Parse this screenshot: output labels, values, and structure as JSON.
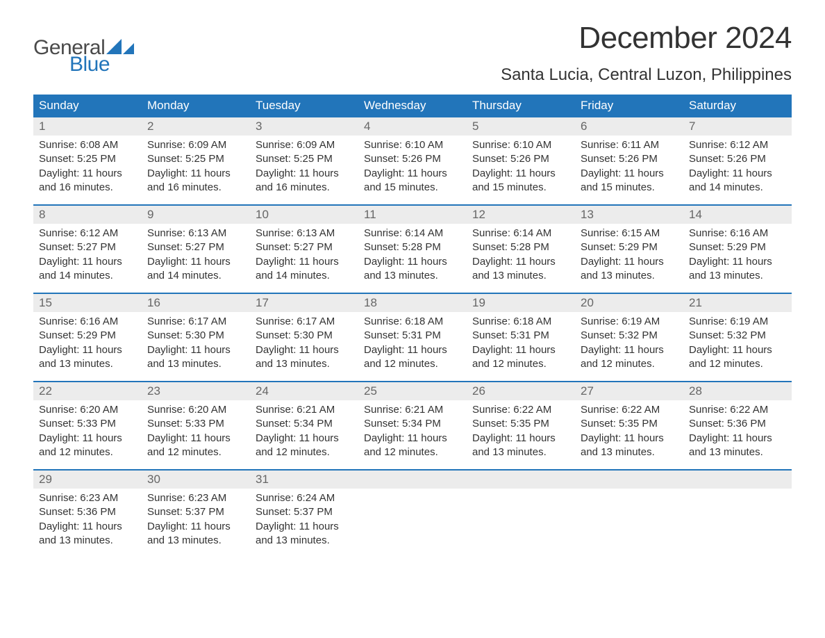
{
  "logo": {
    "text_general": "General",
    "text_blue": "Blue",
    "icon_color": "#2275ba"
  },
  "title": "December 2024",
  "location": "Santa Lucia, Central Luzon, Philippines",
  "colors": {
    "header_bg": "#2275ba",
    "header_text": "#ffffff",
    "daynum_bg": "#ececec",
    "daynum_text": "#666666",
    "body_text": "#333333",
    "week_border": "#2275ba",
    "page_bg": "#ffffff"
  },
  "typography": {
    "title_fontsize": 44,
    "location_fontsize": 24,
    "dayheader_fontsize": 17,
    "daynum_fontsize": 17,
    "body_fontsize": 15
  },
  "day_headers": [
    "Sunday",
    "Monday",
    "Tuesday",
    "Wednesday",
    "Thursday",
    "Friday",
    "Saturday"
  ],
  "weeks": [
    [
      {
        "n": "1",
        "sunrise": "Sunrise: 6:08 AM",
        "sunset": "Sunset: 5:25 PM",
        "dl1": "Daylight: 11 hours",
        "dl2": "and 16 minutes."
      },
      {
        "n": "2",
        "sunrise": "Sunrise: 6:09 AM",
        "sunset": "Sunset: 5:25 PM",
        "dl1": "Daylight: 11 hours",
        "dl2": "and 16 minutes."
      },
      {
        "n": "3",
        "sunrise": "Sunrise: 6:09 AM",
        "sunset": "Sunset: 5:25 PM",
        "dl1": "Daylight: 11 hours",
        "dl2": "and 16 minutes."
      },
      {
        "n": "4",
        "sunrise": "Sunrise: 6:10 AM",
        "sunset": "Sunset: 5:26 PM",
        "dl1": "Daylight: 11 hours",
        "dl2": "and 15 minutes."
      },
      {
        "n": "5",
        "sunrise": "Sunrise: 6:10 AM",
        "sunset": "Sunset: 5:26 PM",
        "dl1": "Daylight: 11 hours",
        "dl2": "and 15 minutes."
      },
      {
        "n": "6",
        "sunrise": "Sunrise: 6:11 AM",
        "sunset": "Sunset: 5:26 PM",
        "dl1": "Daylight: 11 hours",
        "dl2": "and 15 minutes."
      },
      {
        "n": "7",
        "sunrise": "Sunrise: 6:12 AM",
        "sunset": "Sunset: 5:26 PM",
        "dl1": "Daylight: 11 hours",
        "dl2": "and 14 minutes."
      }
    ],
    [
      {
        "n": "8",
        "sunrise": "Sunrise: 6:12 AM",
        "sunset": "Sunset: 5:27 PM",
        "dl1": "Daylight: 11 hours",
        "dl2": "and 14 minutes."
      },
      {
        "n": "9",
        "sunrise": "Sunrise: 6:13 AM",
        "sunset": "Sunset: 5:27 PM",
        "dl1": "Daylight: 11 hours",
        "dl2": "and 14 minutes."
      },
      {
        "n": "10",
        "sunrise": "Sunrise: 6:13 AM",
        "sunset": "Sunset: 5:27 PM",
        "dl1": "Daylight: 11 hours",
        "dl2": "and 14 minutes."
      },
      {
        "n": "11",
        "sunrise": "Sunrise: 6:14 AM",
        "sunset": "Sunset: 5:28 PM",
        "dl1": "Daylight: 11 hours",
        "dl2": "and 13 minutes."
      },
      {
        "n": "12",
        "sunrise": "Sunrise: 6:14 AM",
        "sunset": "Sunset: 5:28 PM",
        "dl1": "Daylight: 11 hours",
        "dl2": "and 13 minutes."
      },
      {
        "n": "13",
        "sunrise": "Sunrise: 6:15 AM",
        "sunset": "Sunset: 5:29 PM",
        "dl1": "Daylight: 11 hours",
        "dl2": "and 13 minutes."
      },
      {
        "n": "14",
        "sunrise": "Sunrise: 6:16 AM",
        "sunset": "Sunset: 5:29 PM",
        "dl1": "Daylight: 11 hours",
        "dl2": "and 13 minutes."
      }
    ],
    [
      {
        "n": "15",
        "sunrise": "Sunrise: 6:16 AM",
        "sunset": "Sunset: 5:29 PM",
        "dl1": "Daylight: 11 hours",
        "dl2": "and 13 minutes."
      },
      {
        "n": "16",
        "sunrise": "Sunrise: 6:17 AM",
        "sunset": "Sunset: 5:30 PM",
        "dl1": "Daylight: 11 hours",
        "dl2": "and 13 minutes."
      },
      {
        "n": "17",
        "sunrise": "Sunrise: 6:17 AM",
        "sunset": "Sunset: 5:30 PM",
        "dl1": "Daylight: 11 hours",
        "dl2": "and 13 minutes."
      },
      {
        "n": "18",
        "sunrise": "Sunrise: 6:18 AM",
        "sunset": "Sunset: 5:31 PM",
        "dl1": "Daylight: 11 hours",
        "dl2": "and 12 minutes."
      },
      {
        "n": "19",
        "sunrise": "Sunrise: 6:18 AM",
        "sunset": "Sunset: 5:31 PM",
        "dl1": "Daylight: 11 hours",
        "dl2": "and 12 minutes."
      },
      {
        "n": "20",
        "sunrise": "Sunrise: 6:19 AM",
        "sunset": "Sunset: 5:32 PM",
        "dl1": "Daylight: 11 hours",
        "dl2": "and 12 minutes."
      },
      {
        "n": "21",
        "sunrise": "Sunrise: 6:19 AM",
        "sunset": "Sunset: 5:32 PM",
        "dl1": "Daylight: 11 hours",
        "dl2": "and 12 minutes."
      }
    ],
    [
      {
        "n": "22",
        "sunrise": "Sunrise: 6:20 AM",
        "sunset": "Sunset: 5:33 PM",
        "dl1": "Daylight: 11 hours",
        "dl2": "and 12 minutes."
      },
      {
        "n": "23",
        "sunrise": "Sunrise: 6:20 AM",
        "sunset": "Sunset: 5:33 PM",
        "dl1": "Daylight: 11 hours",
        "dl2": "and 12 minutes."
      },
      {
        "n": "24",
        "sunrise": "Sunrise: 6:21 AM",
        "sunset": "Sunset: 5:34 PM",
        "dl1": "Daylight: 11 hours",
        "dl2": "and 12 minutes."
      },
      {
        "n": "25",
        "sunrise": "Sunrise: 6:21 AM",
        "sunset": "Sunset: 5:34 PM",
        "dl1": "Daylight: 11 hours",
        "dl2": "and 12 minutes."
      },
      {
        "n": "26",
        "sunrise": "Sunrise: 6:22 AM",
        "sunset": "Sunset: 5:35 PM",
        "dl1": "Daylight: 11 hours",
        "dl2": "and 13 minutes."
      },
      {
        "n": "27",
        "sunrise": "Sunrise: 6:22 AM",
        "sunset": "Sunset: 5:35 PM",
        "dl1": "Daylight: 11 hours",
        "dl2": "and 13 minutes."
      },
      {
        "n": "28",
        "sunrise": "Sunrise: 6:22 AM",
        "sunset": "Sunset: 5:36 PM",
        "dl1": "Daylight: 11 hours",
        "dl2": "and 13 minutes."
      }
    ],
    [
      {
        "n": "29",
        "sunrise": "Sunrise: 6:23 AM",
        "sunset": "Sunset: 5:36 PM",
        "dl1": "Daylight: 11 hours",
        "dl2": "and 13 minutes."
      },
      {
        "n": "30",
        "sunrise": "Sunrise: 6:23 AM",
        "sunset": "Sunset: 5:37 PM",
        "dl1": "Daylight: 11 hours",
        "dl2": "and 13 minutes."
      },
      {
        "n": "31",
        "sunrise": "Sunrise: 6:24 AM",
        "sunset": "Sunset: 5:37 PM",
        "dl1": "Daylight: 11 hours",
        "dl2": "and 13 minutes."
      },
      null,
      null,
      null,
      null
    ]
  ]
}
